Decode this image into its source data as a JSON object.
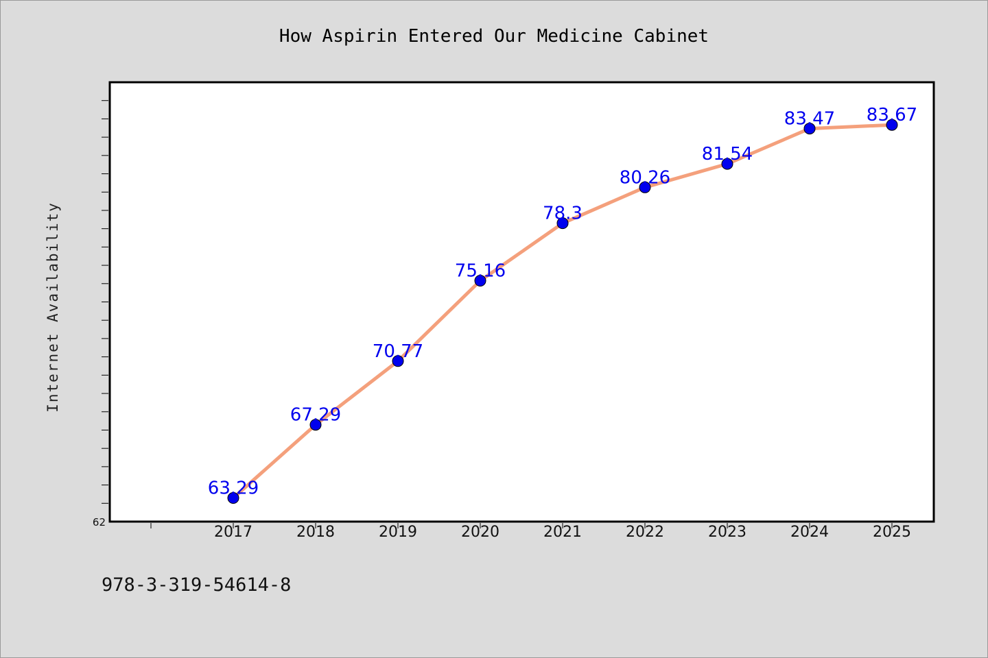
{
  "chart_data": {
    "type": "line",
    "title": "How Aspirin Entered Our Medicine Cabinet",
    "xlabel": "",
    "ylabel": "Internet Availability",
    "categories": [
      "2017",
      "2018",
      "2019",
      "2020",
      "2021",
      "2022",
      "2023",
      "2024",
      "2025"
    ],
    "series": [
      {
        "values": [
          63.29,
          67.29,
          70.77,
          75.16,
          78.3,
          80.26,
          81.54,
          83.47,
          83.67
        ],
        "data_labels": [
          "63.29",
          "67.29",
          "70.77",
          "75.16",
          "78.3",
          "80.26",
          "81.54",
          "83.47",
          "83.67"
        ]
      }
    ],
    "ylim": [
      62,
      86
    ],
    "yticks_labeled": [
      "62"
    ],
    "y_minor_tick_step": 1,
    "grid": false,
    "legend": "none",
    "colors": {
      "line": "#f4a07c",
      "marker": "#0000ee",
      "data_label": "#0000ee",
      "plot_bg": "#ffffff",
      "page_bg": "#dcdcdc"
    }
  },
  "footer": {
    "text": "978-3-319-54614-8"
  }
}
